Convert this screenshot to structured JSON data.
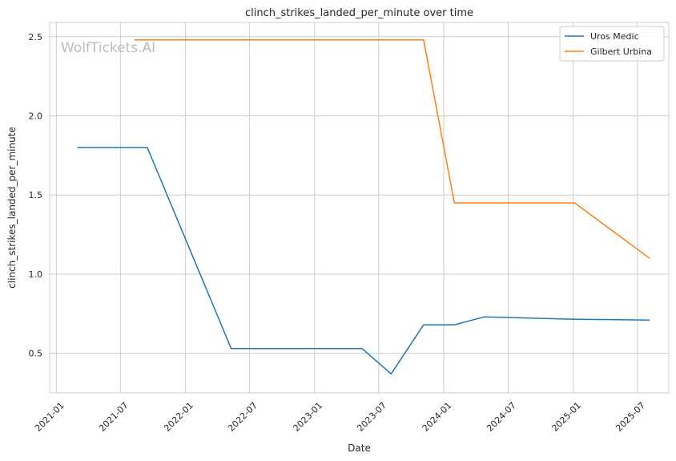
{
  "chart_data": {
    "type": "line",
    "title": "clinch_strikes_landed_per_minute over time",
    "xlabel": "Date",
    "ylabel": "clinch_strikes_landed_per_minute",
    "watermark": "WolfTickets.AI",
    "xlim": [
      "2020-12-13",
      "2025-09-28"
    ],
    "ylim": [
      0.25,
      2.59
    ],
    "x_ticks": [
      "2021-01",
      "2021-07",
      "2022-01",
      "2022-07",
      "2023-01",
      "2023-07",
      "2024-01",
      "2024-07",
      "2025-01",
      "2025-07"
    ],
    "y_ticks": [
      0.5,
      1.0,
      1.5,
      2.0,
      2.5
    ],
    "y_tick_labels": [
      "0.5",
      "1.0",
      "1.5",
      "2.0",
      "2.5"
    ],
    "grid": true,
    "legend": "top-right",
    "series": [
      {
        "name": "Uros Medic",
        "color": "#1f77b4",
        "points": [
          {
            "x": "2021-03-01",
            "y": 1.8
          },
          {
            "x": "2021-09-15",
            "y": 1.8
          },
          {
            "x": "2022-05-10",
            "y": 0.53
          },
          {
            "x": "2023-05-15",
            "y": 0.53
          },
          {
            "x": "2023-08-05",
            "y": 0.37
          },
          {
            "x": "2023-11-05",
            "y": 0.68
          },
          {
            "x": "2024-01-31",
            "y": 0.68
          },
          {
            "x": "2024-04-25",
            "y": 0.73
          },
          {
            "x": "2025-01-05",
            "y": 0.715
          },
          {
            "x": "2025-08-05",
            "y": 0.71
          }
        ]
      },
      {
        "name": "Gilbert Urbina",
        "color": "#ff7f0e",
        "points": [
          {
            "x": "2021-08-10",
            "y": 2.48
          },
          {
            "x": "2023-11-05",
            "y": 2.48
          },
          {
            "x": "2024-01-31",
            "y": 1.45
          },
          {
            "x": "2025-01-05",
            "y": 1.45
          },
          {
            "x": "2025-08-05",
            "y": 1.1
          }
        ]
      }
    ]
  }
}
